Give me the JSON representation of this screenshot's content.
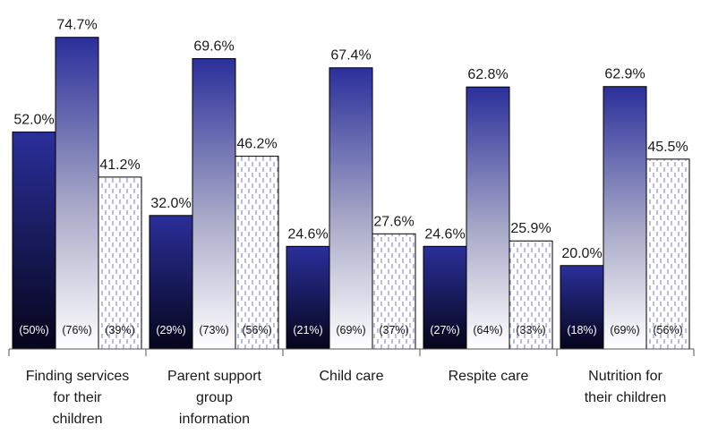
{
  "chart_data": {
    "type": "bar",
    "title": "",
    "xlabel": "",
    "ylabel": "",
    "ylim": [
      0,
      80
    ],
    "grid": false,
    "legend": "none",
    "categories": [
      "Finding services for their children",
      "Parent support group information",
      "Child care",
      "Respite care",
      "Nutrition for their children"
    ],
    "category_lines": [
      [
        "Finding services",
        "for their",
        "children"
      ],
      [
        "Parent support",
        "group",
        "information"
      ],
      [
        "Child care"
      ],
      [
        "Respite care"
      ],
      [
        "Nutrition for",
        "their children"
      ]
    ],
    "series": [
      {
        "values": [
          52.0,
          32.0,
          24.6,
          24.6,
          20.0
        ],
        "value_labels": [
          "52.0%",
          "32.0%",
          "24.6%",
          "24.6%",
          "20.0%"
        ],
        "sub_labels": [
          "(50%)",
          "(29%)",
          "(21%)",
          "(27%)",
          "(18%)"
        ],
        "style": "gradient-dark",
        "colors": [
          "#2b2f9a",
          "#05051a"
        ]
      },
      {
        "values": [
          74.7,
          69.6,
          67.4,
          62.8,
          62.9
        ],
        "value_labels": [
          "74.7%",
          "69.6%",
          "67.4%",
          "62.8%",
          "62.9%"
        ],
        "sub_labels": [
          "(76%)",
          "(73%)",
          "(69%)",
          "(64%)",
          "(69%)"
        ],
        "style": "gradient-light",
        "colors": [
          "#2b2f9a",
          "#ffffff"
        ]
      },
      {
        "values": [
          41.2,
          46.2,
          27.6,
          25.9,
          45.5
        ],
        "value_labels": [
          "41.2%",
          "46.2%",
          "27.6%",
          "25.9%",
          "45.5%"
        ],
        "sub_labels": [
          "(39%)",
          "(56%)",
          "(37%)",
          "(33%)",
          "(56%)"
        ],
        "style": "dashed-pattern",
        "colors": [
          "#ffffff",
          "#8a8fd8"
        ]
      }
    ]
  }
}
